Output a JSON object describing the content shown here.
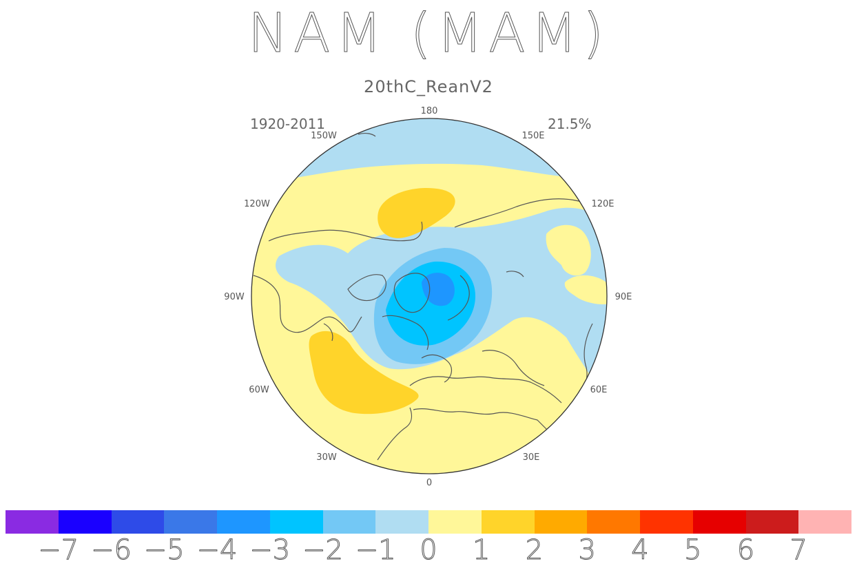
{
  "title": "NAM (MAM)",
  "subtitle": "20thC_ReanV2",
  "period": "1920-2011",
  "variance": "21.5%",
  "longitude_labels": [
    "0",
    "30E",
    "60E",
    "90E",
    "120E",
    "150E",
    "180",
    "150W",
    "120W",
    "90W",
    "60W",
    "30W"
  ],
  "colors": {
    "ocean_neutral": "#fff799",
    "coastline": "#555555"
  },
  "colorbar": {
    "colors": [
      "#8a2be2",
      "#1a00ff",
      "#2e4be8",
      "#3a78e8",
      "#1e96ff",
      "#00c4ff",
      "#73c8f5",
      "#b0ddf2",
      "#fff799",
      "#ffd42a",
      "#ffaa00",
      "#ff7800",
      "#ff3300",
      "#e60000",
      "#cc1c1c",
      "#ffb3b3"
    ],
    "tick_labels": [
      "−7",
      "−6",
      "−5",
      "−4",
      "−3",
      "−2",
      "−1",
      "0",
      "1",
      "2",
      "3",
      "4",
      "5",
      "6",
      "7"
    ]
  }
}
